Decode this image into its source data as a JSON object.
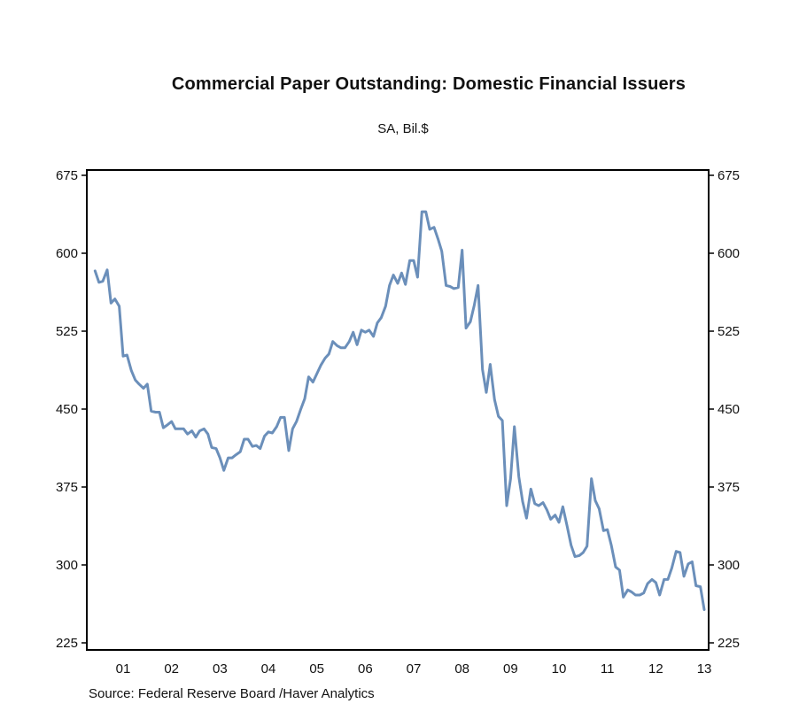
{
  "chart_data": {
    "type": "line",
    "title": "Commercial Paper Outstanding: Domestic Financial Issuers",
    "subtitle": "SA, Bil.$",
    "source": "Source:  Federal Reserve Board /Haver Analytics",
    "ylim": [
      225,
      675
    ],
    "y_ticks": [
      675,
      600,
      525,
      450,
      375,
      300,
      225
    ],
    "x_ticks": [
      {
        "label": "01",
        "year": 2001
      },
      {
        "label": "02",
        "year": 2002
      },
      {
        "label": "03",
        "year": 2003
      },
      {
        "label": "04",
        "year": 2004
      },
      {
        "label": "05",
        "year": 2005
      },
      {
        "label": "06",
        "year": 2006
      },
      {
        "label": "07",
        "year": 2007
      },
      {
        "label": "08",
        "year": 2008
      },
      {
        "label": "09",
        "year": 2009
      },
      {
        "label": "10",
        "year": 2010
      },
      {
        "label": "11",
        "year": 2011
      },
      {
        "label": "12",
        "year": 2012
      },
      {
        "label": "13",
        "year": 2013
      }
    ],
    "grid": false,
    "line_color": "#6b8fba",
    "series": [
      {
        "x": [
          2000.42,
          2000.5,
          2000.58,
          2000.67,
          2000.75,
          2000.83,
          2000.92,
          2001.0,
          2001.08,
          2001.17,
          2001.25,
          2001.33,
          2001.42,
          2001.5,
          2001.58,
          2001.67,
          2001.75,
          2001.83,
          2001.92,
          2002.0,
          2002.08,
          2002.17,
          2002.25,
          2002.33,
          2002.42,
          2002.5,
          2002.58,
          2002.67,
          2002.75,
          2002.83,
          2002.92,
          2003.0,
          2003.08,
          2003.17,
          2003.25,
          2003.33,
          2003.42,
          2003.5,
          2003.58,
          2003.67,
          2003.75,
          2003.83,
          2003.92,
          2004.0,
          2004.08,
          2004.17,
          2004.25,
          2004.33,
          2004.42,
          2004.5,
          2004.58,
          2004.67,
          2004.75,
          2004.83,
          2004.92,
          2005.0,
          2005.08,
          2005.17,
          2005.25,
          2005.33,
          2005.42,
          2005.5,
          2005.58,
          2005.67,
          2005.75,
          2005.83,
          2005.92,
          2006.0,
          2006.08,
          2006.17,
          2006.25,
          2006.33,
          2006.42,
          2006.5,
          2006.58,
          2006.67,
          2006.75,
          2006.83,
          2006.92,
          2007.0,
          2007.08,
          2007.17,
          2007.25,
          2007.33,
          2007.42,
          2007.5,
          2007.58,
          2007.67,
          2007.75,
          2007.83,
          2007.92,
          2008.0,
          2008.08,
          2008.17,
          2008.25,
          2008.33,
          2008.42,
          2008.5,
          2008.58,
          2008.67,
          2008.75,
          2008.83,
          2008.92,
          2009.0,
          2009.08,
          2009.17,
          2009.25,
          2009.33,
          2009.42,
          2009.5,
          2009.58,
          2009.67,
          2009.75,
          2009.83,
          2009.92,
          2010.0,
          2010.08,
          2010.17,
          2010.25,
          2010.33,
          2010.42,
          2010.5,
          2010.58,
          2010.67,
          2010.75,
          2010.83,
          2010.92,
          2011.0,
          2011.08,
          2011.17,
          2011.25,
          2011.33,
          2011.42,
          2011.5,
          2011.58,
          2011.67,
          2011.75,
          2011.83,
          2011.92,
          2012.0,
          2012.08,
          2012.17,
          2012.25,
          2012.33,
          2012.42,
          2012.5,
          2012.58,
          2012.67,
          2012.75,
          2012.83,
          2012.92,
          2013.0
        ],
        "values": [
          583,
          572,
          573,
          584,
          552,
          556,
          549,
          501,
          502,
          487,
          478,
          474,
          470,
          474,
          448,
          447,
          447,
          432,
          435,
          438,
          431,
          431,
          431,
          426,
          429,
          423,
          429,
          431,
          426,
          413,
          412,
          403,
          391,
          403,
          403,
          406,
          409,
          421,
          421,
          414,
          415,
          412,
          424,
          428,
          427,
          433,
          442,
          442,
          410,
          431,
          438,
          450,
          460,
          481,
          476,
          484,
          492,
          499,
          503,
          515,
          511,
          509,
          509,
          515,
          524,
          512,
          526,
          524,
          526,
          520,
          533,
          538,
          549,
          569,
          579,
          571,
          581,
          570,
          593,
          593,
          577,
          640,
          640,
          623,
          625,
          614,
          602,
          569,
          568,
          566,
          567,
          603,
          528,
          534,
          550,
          569,
          488,
          466,
          493,
          459,
          443,
          439,
          357,
          383,
          433,
          385,
          361,
          345,
          373,
          359,
          357,
          360,
          353,
          344,
          348,
          341,
          356,
          337,
          319,
          308,
          309,
          312,
          318,
          383,
          362,
          354,
          333,
          334,
          319,
          298,
          295,
          269,
          276,
          274,
          271,
          271,
          273,
          282,
          286,
          283,
          271,
          286,
          286,
          297,
          313,
          312,
          289,
          301,
          303,
          280,
          279,
          257
        ]
      }
    ]
  }
}
